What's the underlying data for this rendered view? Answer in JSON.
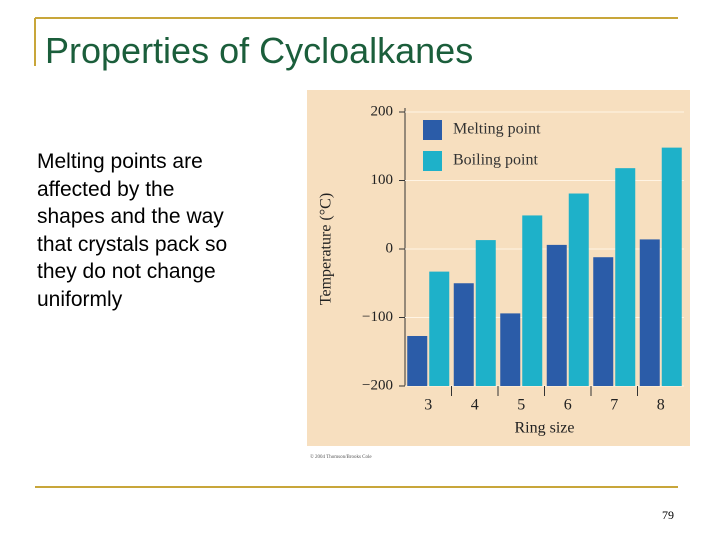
{
  "title": "Properties of Cycloalkanes",
  "body": [
    "Melting points are",
    "affected by the",
    "shapes and the way",
    "that crystals pack so",
    "they do not change",
    "uniformly"
  ],
  "page_number": "79",
  "chart_data": {
    "type": "bar",
    "categories": [
      "3",
      "4",
      "5",
      "6",
      "7",
      "8"
    ],
    "series": [
      {
        "name": "Melting point",
        "color": "#2b5ca8",
        "values": [
          -127,
          -50,
          -94,
          6,
          -12,
          14
        ]
      },
      {
        "name": "Boiling point",
        "color": "#1eb1c9",
        "values": [
          -33,
          13,
          49,
          81,
          118,
          148
        ]
      }
    ],
    "xlabel": "Ring size",
    "ylabel": "Temperature (°C)",
    "ylim": [
      -200,
      200
    ],
    "yticks": [
      {
        "value": -200,
        "label": "−200"
      },
      {
        "value": -100,
        "label": "−100"
      },
      0,
      100,
      200
    ],
    "grid": true,
    "legend": "upper left",
    "source_note": "© 2004 Thomson/Brooks Cole"
  }
}
